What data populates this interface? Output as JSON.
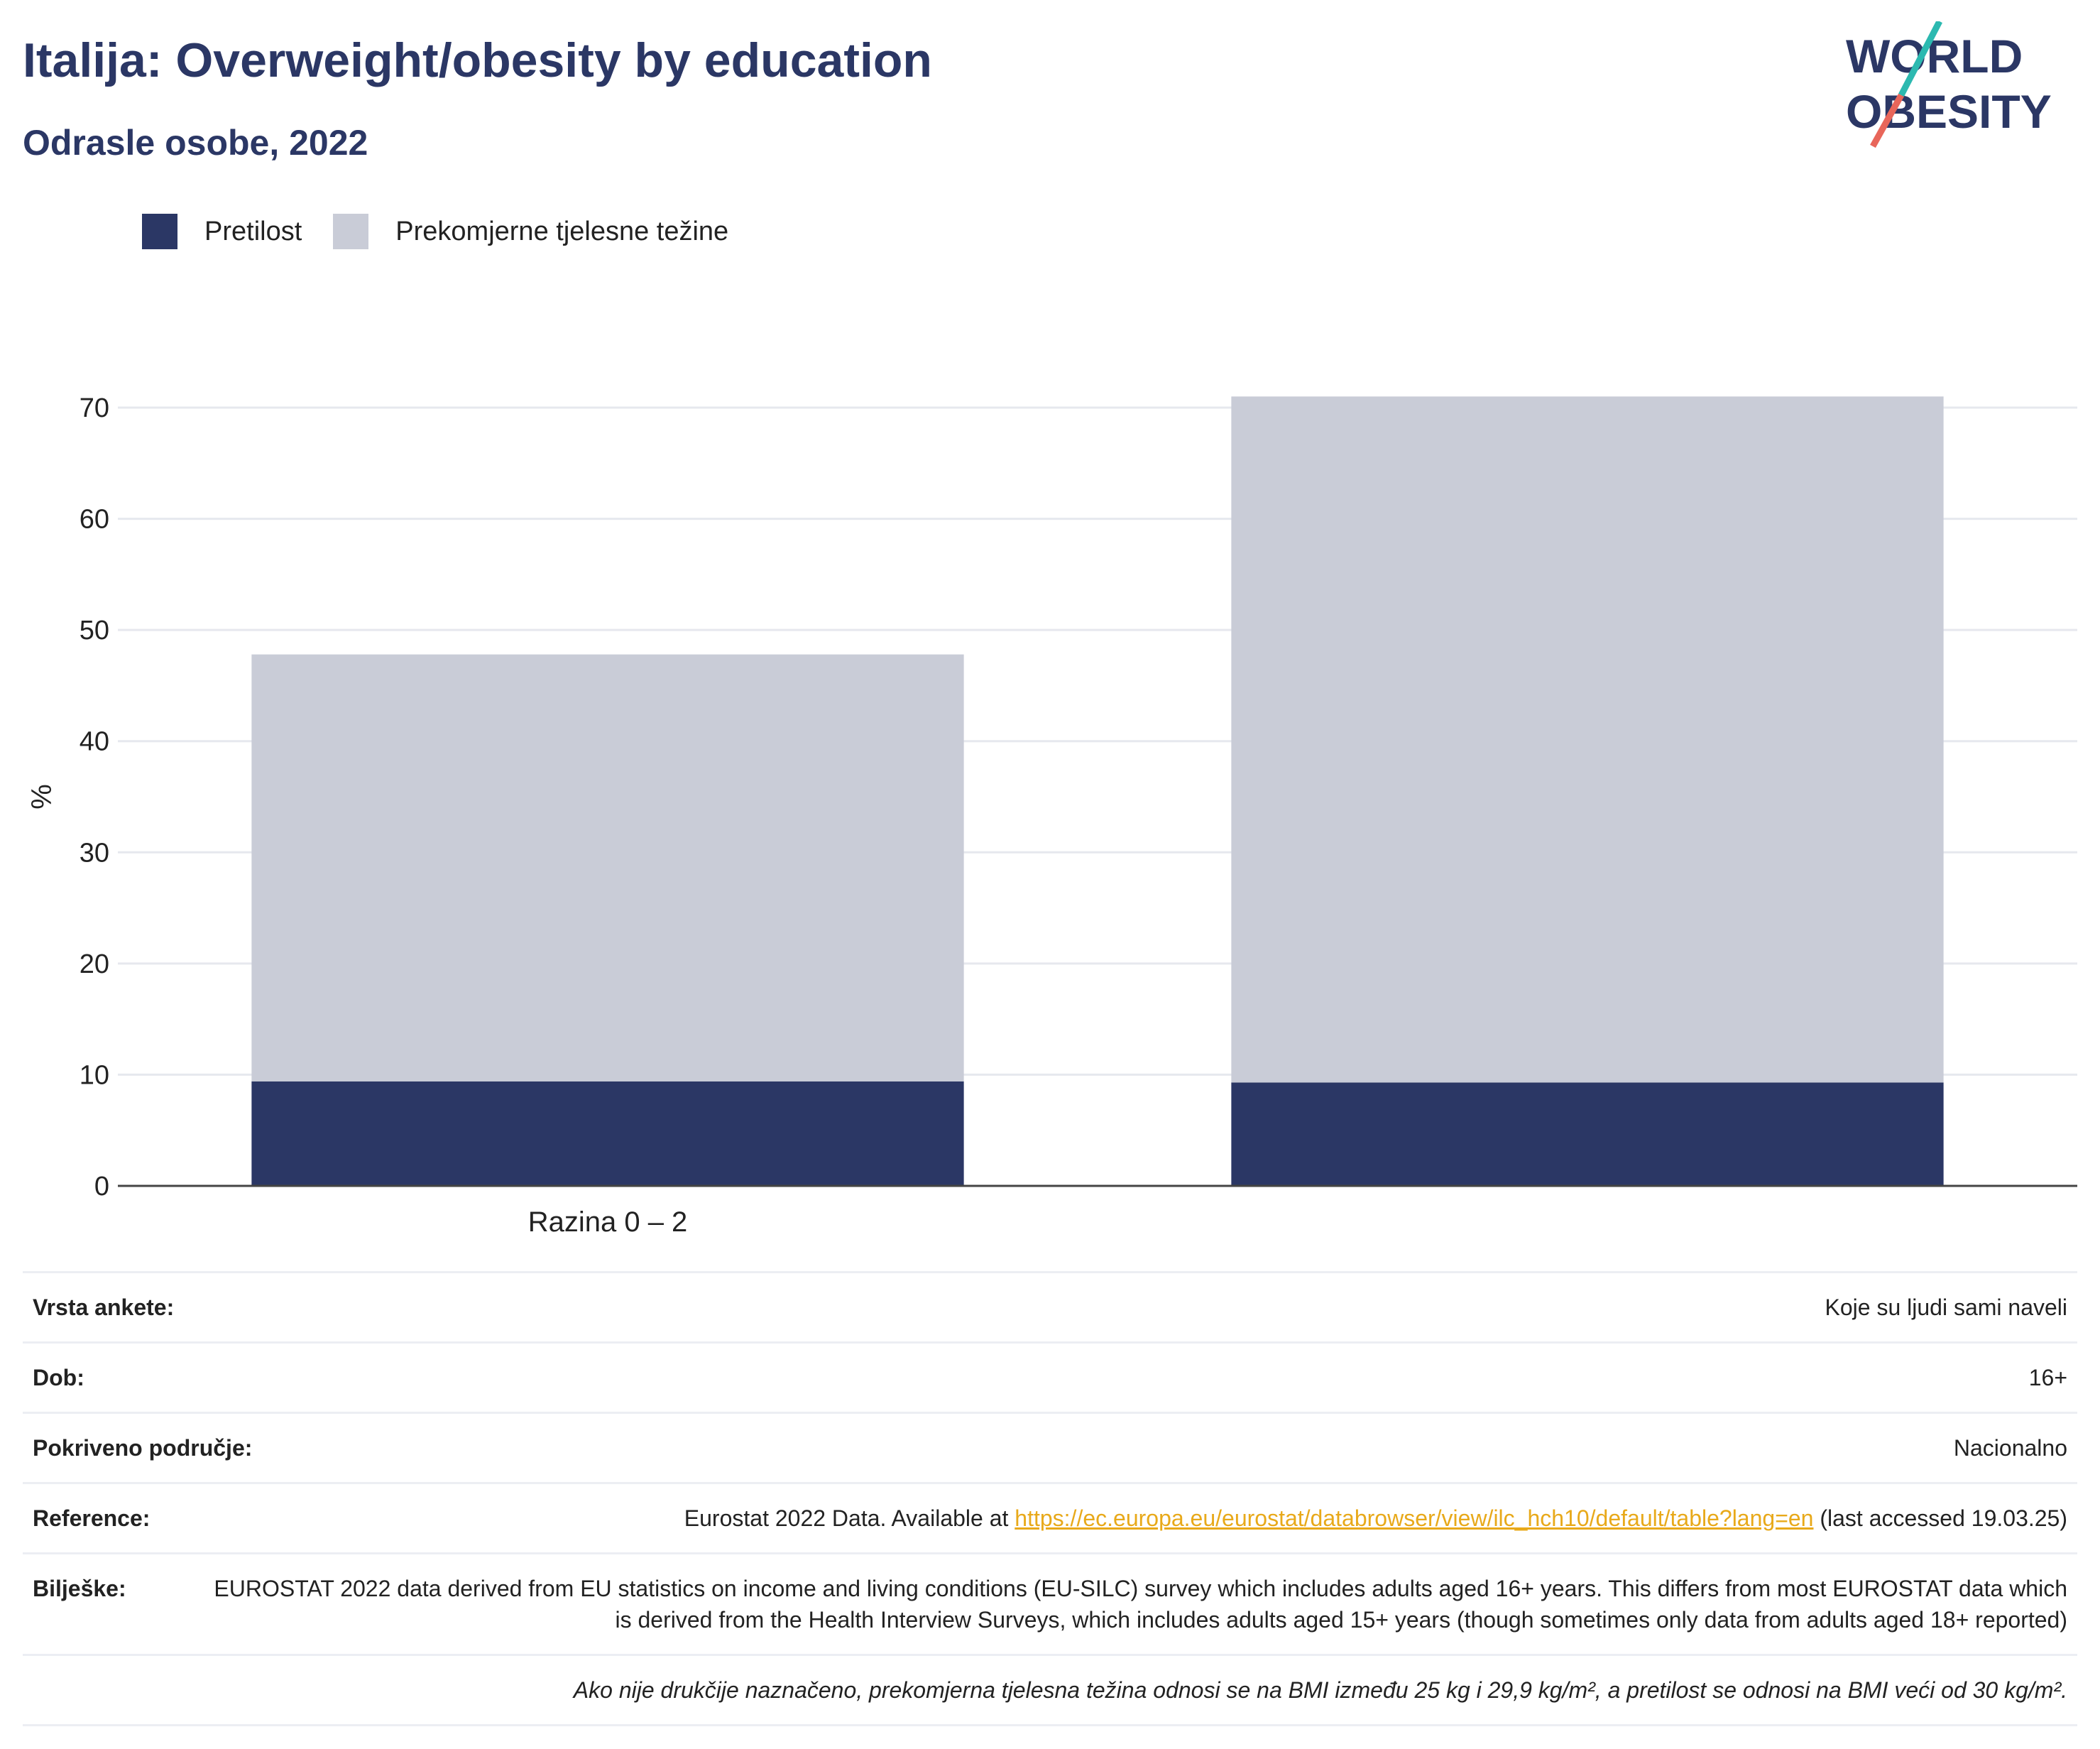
{
  "header": {
    "title": "Italija: Overweight/obesity by education",
    "subtitle": "Odrasle osobe, 2022"
  },
  "logo": {
    "line1": "WORLD",
    "line2": "OBESITY",
    "accent_teal": "#2cb9b0",
    "accent_coral": "#e8665a",
    "text_color": "#2b3765"
  },
  "legend": [
    {
      "label": "Pretilost",
      "color": "#2b3765"
    },
    {
      "label": "Prekomjerne tjelesne težine",
      "color": "#c9ccd7"
    }
  ],
  "chart_data": {
    "type": "bar",
    "stacked": true,
    "categories": [
      "Razina 0 – 2",
      ""
    ],
    "series": [
      {
        "name": "Pretilost",
        "values": [
          9.4,
          9.3
        ],
        "color": "#2b3765"
      },
      {
        "name": "Prekomjerne tjelesne težine",
        "values": [
          38.4,
          61.7
        ],
        "color": "#c9ccd7"
      }
    ],
    "ylabel": "%",
    "xlabel": "",
    "ylim": [
      0,
      70
    ],
    "yticks": [
      0,
      10,
      20,
      30,
      40,
      50,
      60,
      70
    ],
    "grid": true,
    "legend_position": "top-left"
  },
  "info": {
    "rows": [
      {
        "label": "Vrsta ankete:",
        "value": "Koje su ljudi sami naveli"
      },
      {
        "label": "Dob:",
        "value": "16+"
      },
      {
        "label": "Pokriveno područje:",
        "value": "Nacionalno"
      }
    ],
    "reference": {
      "label": "Reference:",
      "prefix": "Eurostat 2022 Data. Available at ",
      "link": "https://ec.europa.eu/eurostat/databrowser/view/ilc_hch10/default/table?lang=en",
      "suffix": " (last accessed 19.03.25)"
    },
    "notes": {
      "label": "Bilješke:",
      "value": "EUROSTAT 2022 data derived from EU statistics on income and living conditions (EU-SILC) survey which includes adults aged 16+ years. This differs from most EUROSTAT data which is derived from the Health Interview Surveys, which includes adults aged 15+ years (though sometimes only data from adults aged 18+ reported)"
    },
    "footnote": "Ako nije drukčije naznačeno, prekomjerna tjelesna težina odnosi se na BMI između 25 kg i 29,9 kg/m², a pretilost se odnosi na BMI veći od 30 kg/m²."
  }
}
